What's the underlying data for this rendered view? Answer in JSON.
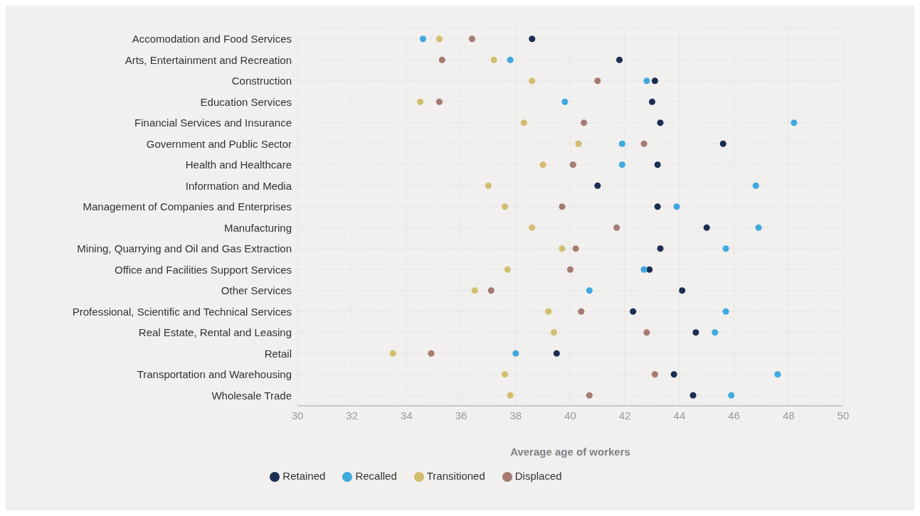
{
  "chart_data": {
    "type": "scatter",
    "xlabel": "Average age of workers",
    "categories": [
      "Accomodation and Food Services",
      "Arts, Entertainment and Recreation",
      "Construction",
      "Education Services",
      "Financial Services and Insurance",
      "Government and Public Sector",
      "Health and Healthcare",
      "Information and Media",
      "Management of Companies and Enterprises",
      "Manufacturing",
      "Mining, Quarrying and Oil and Gas Extraction",
      "Office and Facilities Support Services",
      "Other Services",
      "Professional, Scientific and Technical Services",
      "Real Estate, Rental and Leasing",
      "Retail",
      "Transportation and Warehousing",
      "Wholesale Trade"
    ],
    "series": [
      {
        "name": "Retained",
        "color": "#1b2f52",
        "values": [
          38.6,
          41.8,
          43.1,
          43.0,
          43.3,
          45.6,
          43.2,
          41.0,
          43.2,
          45.0,
          43.3,
          42.9,
          44.1,
          42.3,
          44.6,
          39.5,
          43.8,
          44.5
        ]
      },
      {
        "name": "Recalled",
        "color": "#3fa9e0",
        "values": [
          34.6,
          37.8,
          42.8,
          39.8,
          48.2,
          41.9,
          41.9,
          46.8,
          43.9,
          46.9,
          45.7,
          42.7,
          40.7,
          45.7,
          45.3,
          38.0,
          47.6,
          45.9
        ]
      },
      {
        "name": "Transitioned",
        "color": "#d3bd6e",
        "values": [
          35.2,
          37.2,
          38.6,
          34.5,
          38.3,
          40.3,
          39.0,
          37.0,
          37.6,
          38.6,
          39.7,
          37.7,
          36.5,
          39.2,
          39.4,
          33.5,
          37.6,
          37.8
        ]
      },
      {
        "name": "Displaced",
        "color": "#a57b72",
        "values": [
          36.4,
          35.3,
          41.0,
          35.2,
          40.5,
          42.7,
          40.1,
          null,
          39.7,
          41.7,
          40.2,
          40.0,
          37.1,
          40.4,
          42.8,
          34.9,
          43.1,
          40.7
        ]
      }
    ],
    "xlim": [
      30,
      50
    ],
    "xticks": [
      30,
      32,
      34,
      36,
      38,
      40,
      42,
      44,
      46,
      48,
      50
    ],
    "grid": true,
    "legend": "bottom",
    "marker": "circle",
    "orientation": "horizontal"
  }
}
